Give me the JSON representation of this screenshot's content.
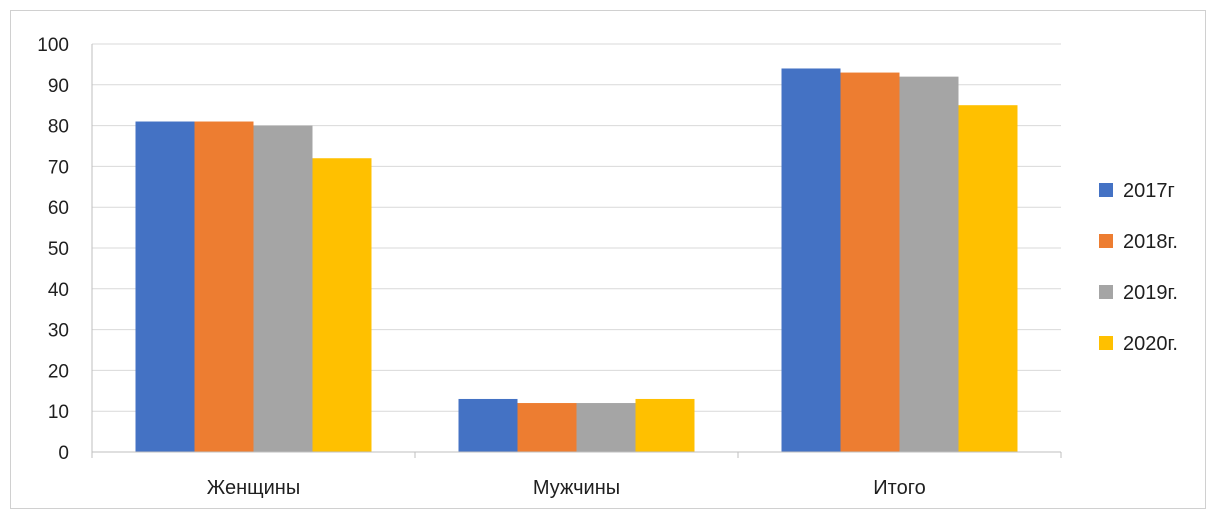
{
  "chart_data": {
    "type": "bar",
    "categories": [
      "Женщины",
      "Мужчины",
      "Итого"
    ],
    "series": [
      {
        "name": "2017г",
        "values": [
          81,
          13,
          94
        ],
        "color": "#4472C4"
      },
      {
        "name": "2018г.",
        "values": [
          81,
          12,
          93
        ],
        "color": "#ED7D31"
      },
      {
        "name": "2019г.",
        "values": [
          80,
          12,
          92
        ],
        "color": "#A5A5A5"
      },
      {
        "name": "2020г.",
        "values": [
          72,
          13,
          85
        ],
        "color": "#FFC000"
      }
    ],
    "ylim": [
      0,
      100
    ],
    "yticks": [
      "0",
      "10",
      "20",
      "30",
      "40",
      "50",
      "60",
      "70",
      "80",
      "90",
      "100"
    ],
    "grid": true,
    "legend_position": "right"
  }
}
